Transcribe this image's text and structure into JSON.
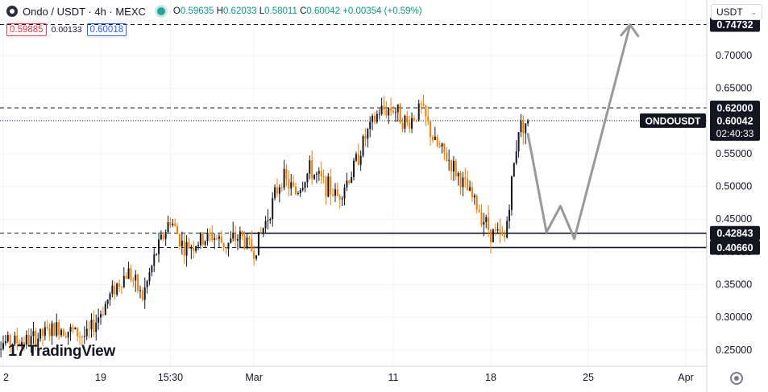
{
  "header": {
    "symbol": "Ondo / USDT · 4h · MEXC",
    "ohlc_items": [
      {
        "k": "O",
        "v": "0.59635"
      },
      {
        "k": "H",
        "v": "0.62033"
      },
      {
        "k": "L",
        "v": "0.58011"
      },
      {
        "k": "C",
        "v": "0.60042"
      },
      {
        "k": "",
        "v": "+0.00354 (+0.59%)"
      }
    ],
    "bid": "0.59885",
    "spread": "0.00133",
    "ask": "0.60018",
    "currency": "USDT",
    "currency_chevron": "chevron-down-icon"
  },
  "branding": {
    "logo_mark": "17",
    "logo_text": "TradingView"
  },
  "colors": {
    "up": "#131722",
    "down": "#f57c00",
    "bg": "#ffffff",
    "grid": "#f0f3fa",
    "arrow": "#999999",
    "label_bg": "#131722",
    "ask": "#2962ff",
    "bid": "#f23645"
  },
  "chart_data": {
    "type": "candlestick",
    "ylim": [
      0.235,
      0.775
    ],
    "y_ticks": [
      0.25,
      0.3,
      0.35,
      0.4,
      0.45,
      0.5,
      0.55,
      0.6,
      0.65,
      0.7
    ],
    "y_tick_labels": [
      "0.25000",
      "0.30000",
      "0.35000",
      "0.40000",
      "0.45000",
      "0.50000",
      "0.55000",
      "0.60000",
      "0.65000",
      "0.70000"
    ],
    "x_axis": [
      "2",
      "19",
      "15:30",
      "Mar",
      "11",
      "18",
      "25",
      "Apr"
    ],
    "x_axis_dates": [
      "2024-02-12",
      "2024-02-19",
      "2024-02-24",
      "2024-03-01",
      "2024-03-11",
      "2024-03-18",
      "2024-03-25",
      "2024-04-01"
    ],
    "first_candle_date": "2024-02-11",
    "candle_interval_hours": 4,
    "anchors": [
      {
        "date": "2024-02-11",
        "price": 0.26
      },
      {
        "date": "2024-02-14",
        "price": 0.265
      },
      {
        "date": "2024-02-16",
        "price": 0.285
      },
      {
        "date": "2024-02-18",
        "price": 0.27
      },
      {
        "date": "2024-02-20",
        "price": 0.345
      },
      {
        "date": "2024-02-21",
        "price": 0.37
      },
      {
        "date": "2024-02-22",
        "price": 0.33
      },
      {
        "date": "2024-02-23",
        "price": 0.4
      },
      {
        "date": "2024-02-24",
        "price": 0.45
      },
      {
        "date": "2024-02-25",
        "price": 0.405
      },
      {
        "date": "2024-02-27",
        "price": 0.425
      },
      {
        "date": "2024-02-28",
        "price": 0.41
      },
      {
        "date": "2024-02-29",
        "price": 0.425
      },
      {
        "date": "2024-03-01",
        "price": 0.4
      },
      {
        "date": "2024-03-02",
        "price": 0.455
      },
      {
        "date": "2024-03-03",
        "price": 0.515
      },
      {
        "date": "2024-03-04",
        "price": 0.49
      },
      {
        "date": "2024-03-05",
        "price": 0.525
      },
      {
        "date": "2024-03-06",
        "price": 0.505
      },
      {
        "date": "2024-03-07",
        "price": 0.485
      },
      {
        "date": "2024-03-08",
        "price": 0.52
      },
      {
        "date": "2024-03-09",
        "price": 0.575
      },
      {
        "date": "2024-03-10",
        "price": 0.615
      },
      {
        "date": "2024-03-11",
        "price": 0.62
      },
      {
        "date": "2024-03-12",
        "price": 0.595
      },
      {
        "date": "2024-03-13",
        "price": 0.62
      },
      {
        "date": "2024-03-14",
        "price": 0.565
      },
      {
        "date": "2024-03-15",
        "price": 0.54
      },
      {
        "date": "2024-03-16",
        "price": 0.505
      },
      {
        "date": "2024-03-17",
        "price": 0.47
      },
      {
        "date": "2024-03-18",
        "price": 0.43
      },
      {
        "date": "2024-03-19",
        "price": 0.42
      },
      {
        "date": "2024-03-20",
        "price": 0.59
      },
      {
        "date": "2024-03-20 16:00",
        "price": 0.6
      }
    ],
    "levels": [
      {
        "price": 0.74732,
        "label": "0.74732",
        "style": "dashed"
      },
      {
        "price": 0.62,
        "label": "0.62000",
        "style": "dashed"
      },
      {
        "price": 0.42843,
        "label": "0.42843",
        "style": "dashed"
      },
      {
        "price": 0.4066,
        "label": "0.40660",
        "style": "dashed"
      }
    ],
    "zone": {
      "from_date": "2024-02-29",
      "top": 0.42843,
      "bottom": 0.4066
    },
    "current": {
      "symbol": "ONDOUSDT",
      "price": 0.60042,
      "label": "0.60042",
      "countdown": "02:40:33"
    },
    "projection": [
      {
        "date": "2024-03-20 16:00",
        "price": 0.58
      },
      {
        "date": "2024-03-22",
        "price": 0.43
      },
      {
        "date": "2024-03-23",
        "price": 0.47
      },
      {
        "date": "2024-03-24",
        "price": 0.42
      },
      {
        "date": "2024-03-28",
        "price": 0.747
      }
    ]
  }
}
